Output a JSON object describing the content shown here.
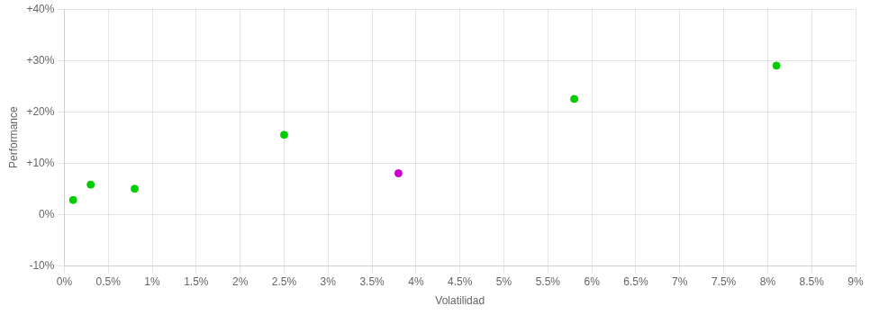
{
  "chart_data": {
    "type": "scatter",
    "xlabel": "Volatilidad",
    "ylabel": "Performance",
    "x": [
      0.001,
      0.003,
      0.008,
      0.025,
      0.038,
      0.058,
      0.081
    ],
    "values": [
      0.028,
      0.058,
      0.05,
      0.155,
      0.08,
      0.225,
      0.29
    ],
    "colors": [
      "#00cc00",
      "#00cc00",
      "#00cc00",
      "#00cc00",
      "#cc00cc",
      "#00cc00",
      "#00cc00"
    ],
    "xlim": [
      0,
      0.09
    ],
    "xticks": [
      {
        "value": 0.0,
        "label": "0%"
      },
      {
        "value": 0.005,
        "label": "0.5%"
      },
      {
        "value": 0.01,
        "label": "1%"
      },
      {
        "value": 0.015,
        "label": "1.5%"
      },
      {
        "value": 0.02,
        "label": "2%"
      },
      {
        "value": 0.025,
        "label": "2.5%"
      },
      {
        "value": 0.03,
        "label": "3%"
      },
      {
        "value": 0.035,
        "label": "3.5%"
      },
      {
        "value": 0.04,
        "label": "4%"
      },
      {
        "value": 0.045,
        "label": "4.5%"
      },
      {
        "value": 0.05,
        "label": "5%"
      },
      {
        "value": 0.055,
        "label": "5.5%"
      },
      {
        "value": 0.06,
        "label": "6%"
      },
      {
        "value": 0.065,
        "label": "6.5%"
      },
      {
        "value": 0.07,
        "label": "7%"
      },
      {
        "value": 0.075,
        "label": "7.5%"
      },
      {
        "value": 0.08,
        "label": "8%"
      },
      {
        "value": 0.085,
        "label": "8.5%"
      },
      {
        "value": 0.09,
        "label": "9%"
      }
    ],
    "ylim": [
      -0.1,
      0.4
    ],
    "yticks": [
      {
        "value": -0.1,
        "label": "-10%"
      },
      {
        "value": 0.0,
        "label": "0%"
      },
      {
        "value": 0.1,
        "label": "+10%"
      },
      {
        "value": 0.2,
        "label": "+20%"
      },
      {
        "value": 0.3,
        "label": "+30%"
      },
      {
        "value": 0.4,
        "label": "+40%"
      }
    ],
    "grid": true
  }
}
